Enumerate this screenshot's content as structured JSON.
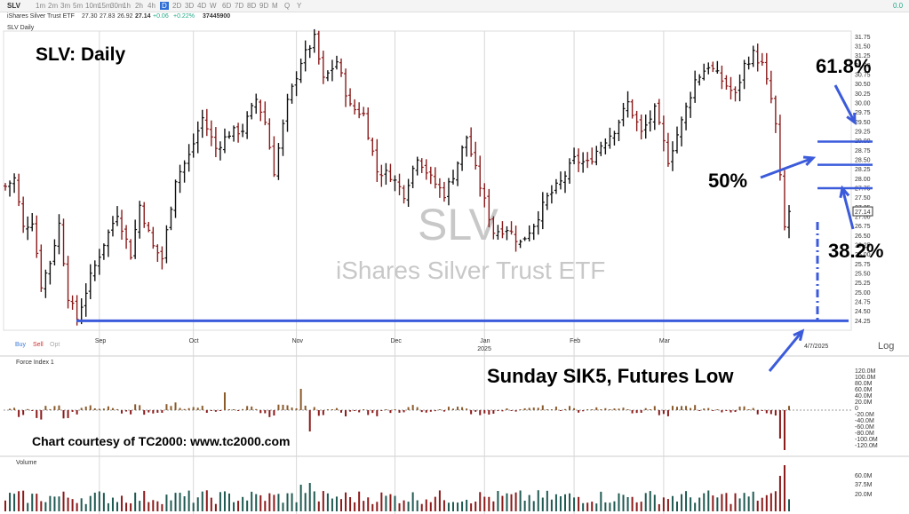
{
  "toolbar": {
    "symbol": "SLV",
    "timeframes": [
      "1m",
      "2m",
      "3m",
      "5m",
      "10m",
      "15m",
      "30m",
      "1h",
      "2h",
      "4h",
      "D",
      "2D",
      "3D",
      "4D",
      "W",
      "6D",
      "7D",
      "8D",
      "9D",
      "M",
      "Q",
      "Y"
    ],
    "active_timeframe": "D",
    "right_badge": "0.0"
  },
  "quote": {
    "name": "iShares Silver Trust ETF",
    "open": "27.30",
    "high": "27.83",
    "low": "26.92",
    "close": "27.14",
    "change": "+0.06",
    "change_pct": "+0.22%",
    "volume": "37445900"
  },
  "pane_labels": {
    "price": "SLV Daily",
    "force": "Force Index 1",
    "volume": "Volume",
    "log": "Log"
  },
  "order_buttons": {
    "buy": "Buy",
    "sell": "Sell",
    "opt": "Opt"
  },
  "watermark": {
    "symbol": "SLV",
    "name": "iShares Silver Trust ETF"
  },
  "annotations": {
    "title": "SLV:  Daily",
    "fib_618": "61.8%",
    "fib_50": "50%",
    "fib_382": "38.2%",
    "futures_low": "Sunday SIK5, Futures Low",
    "courtesy": "Chart courtesy of TC2000:  www.tc2000.com"
  },
  "colors": {
    "up": "#111111",
    "down": "#8b1a1a",
    "annotation": "#3b5bdb",
    "force_up": "#8b5a2b",
    "force_down": "#8b1a1a",
    "vol_up": "#1f5a52",
    "vol_down": "#8b1a1a"
  },
  "chart_data": {
    "type": "ohlc",
    "price_ticks": [
      "31.75",
      "31.50",
      "31.25",
      "31.00",
      "30.75",
      "30.50",
      "30.25",
      "30.00",
      "29.75",
      "29.50",
      "29.25",
      "29.00",
      "28.75",
      "28.50",
      "28.25",
      "28.00",
      "27.75",
      "27.50",
      "27.25",
      "27.00",
      "26.75",
      "26.50",
      "26.25",
      "26.00",
      "25.75",
      "25.50",
      "25.25",
      "25.00",
      "24.75",
      "24.50",
      "24.25"
    ],
    "price_range": [
      24.0,
      31.9
    ],
    "last_price_label": "27.14",
    "month_labels": [
      {
        "label": "Sep",
        "index": 21
      },
      {
        "label": "Oct",
        "index": 42
      },
      {
        "label": "Nov",
        "index": 65
      },
      {
        "label": "Dec",
        "index": 87
      },
      {
        "label": "Jan",
        "index": 107
      },
      {
        "label": "Feb",
        "index": 127
      },
      {
        "label": "Mar",
        "index": 147
      }
    ],
    "year_label": {
      "label": "2025",
      "index": 107
    },
    "date_marker": "4/7/2025",
    "force_ticks": [
      "120.0M",
      "100.0M",
      "80.0M",
      "60.0M",
      "40.0M",
      "20.0M",
      "0",
      "-20.0M",
      "-40.0M",
      "-60.0M",
      "-80.0M",
      "-100.0M",
      "-120.0M"
    ],
    "volume_ticks": [
      "60.0M",
      "37.5M",
      "20.0M"
    ],
    "fib_levels": [
      {
        "label": "61.8%",
        "value": 28.98
      },
      {
        "label": "50%",
        "value": 28.37
      },
      {
        "label": "38.2%",
        "value": 27.75
      }
    ],
    "support_level": 24.25,
    "key_points": [
      {
        "date": "Aug low",
        "value": 24.3
      },
      {
        "date": "Oct high",
        "value": 31.7
      },
      {
        "date": "Mar high",
        "value": 31.4
      },
      {
        "date": "4/7/2025",
        "value": 27.14
      }
    ]
  }
}
